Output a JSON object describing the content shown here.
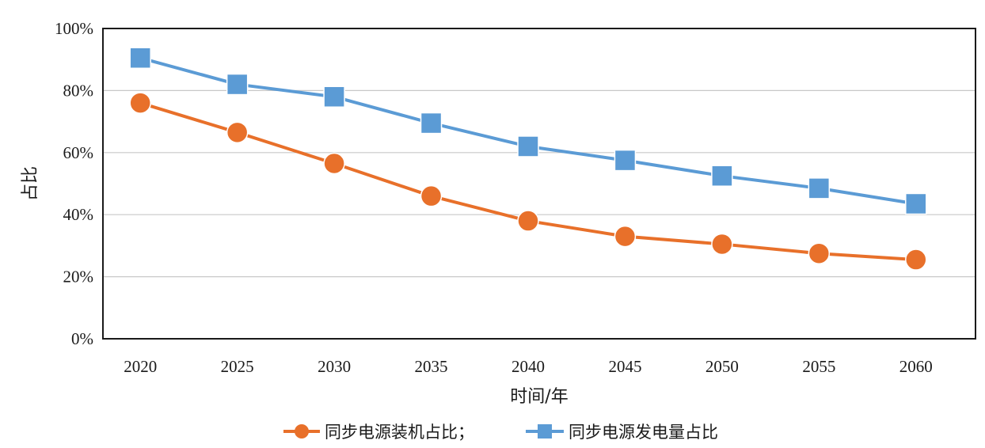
{
  "chart_data": {
    "type": "line",
    "xlabel": "时间/年",
    "ylabel": "占比",
    "categories": [
      "2020",
      "2025",
      "2030",
      "2035",
      "2040",
      "2045",
      "2050",
      "2055",
      "2060"
    ],
    "ylim": [
      0,
      100
    ],
    "yticks": [
      "0%",
      "20%",
      "40%",
      "60%",
      "80%",
      "100%"
    ],
    "grid": true,
    "legend_position": "bottom",
    "series": [
      {
        "name": "同步电源装机占比；",
        "marker": "circle",
        "color": "#E8702A",
        "values": [
          76,
          66.5,
          56.5,
          46,
          38,
          33,
          30.5,
          27.5,
          25.5
        ]
      },
      {
        "name": "同步电源发电量占比",
        "marker": "square",
        "color": "#5B9BD5",
        "values": [
          90.5,
          82,
          78,
          69.5,
          62,
          57.5,
          52.5,
          48.5,
          43.5
        ]
      }
    ]
  }
}
